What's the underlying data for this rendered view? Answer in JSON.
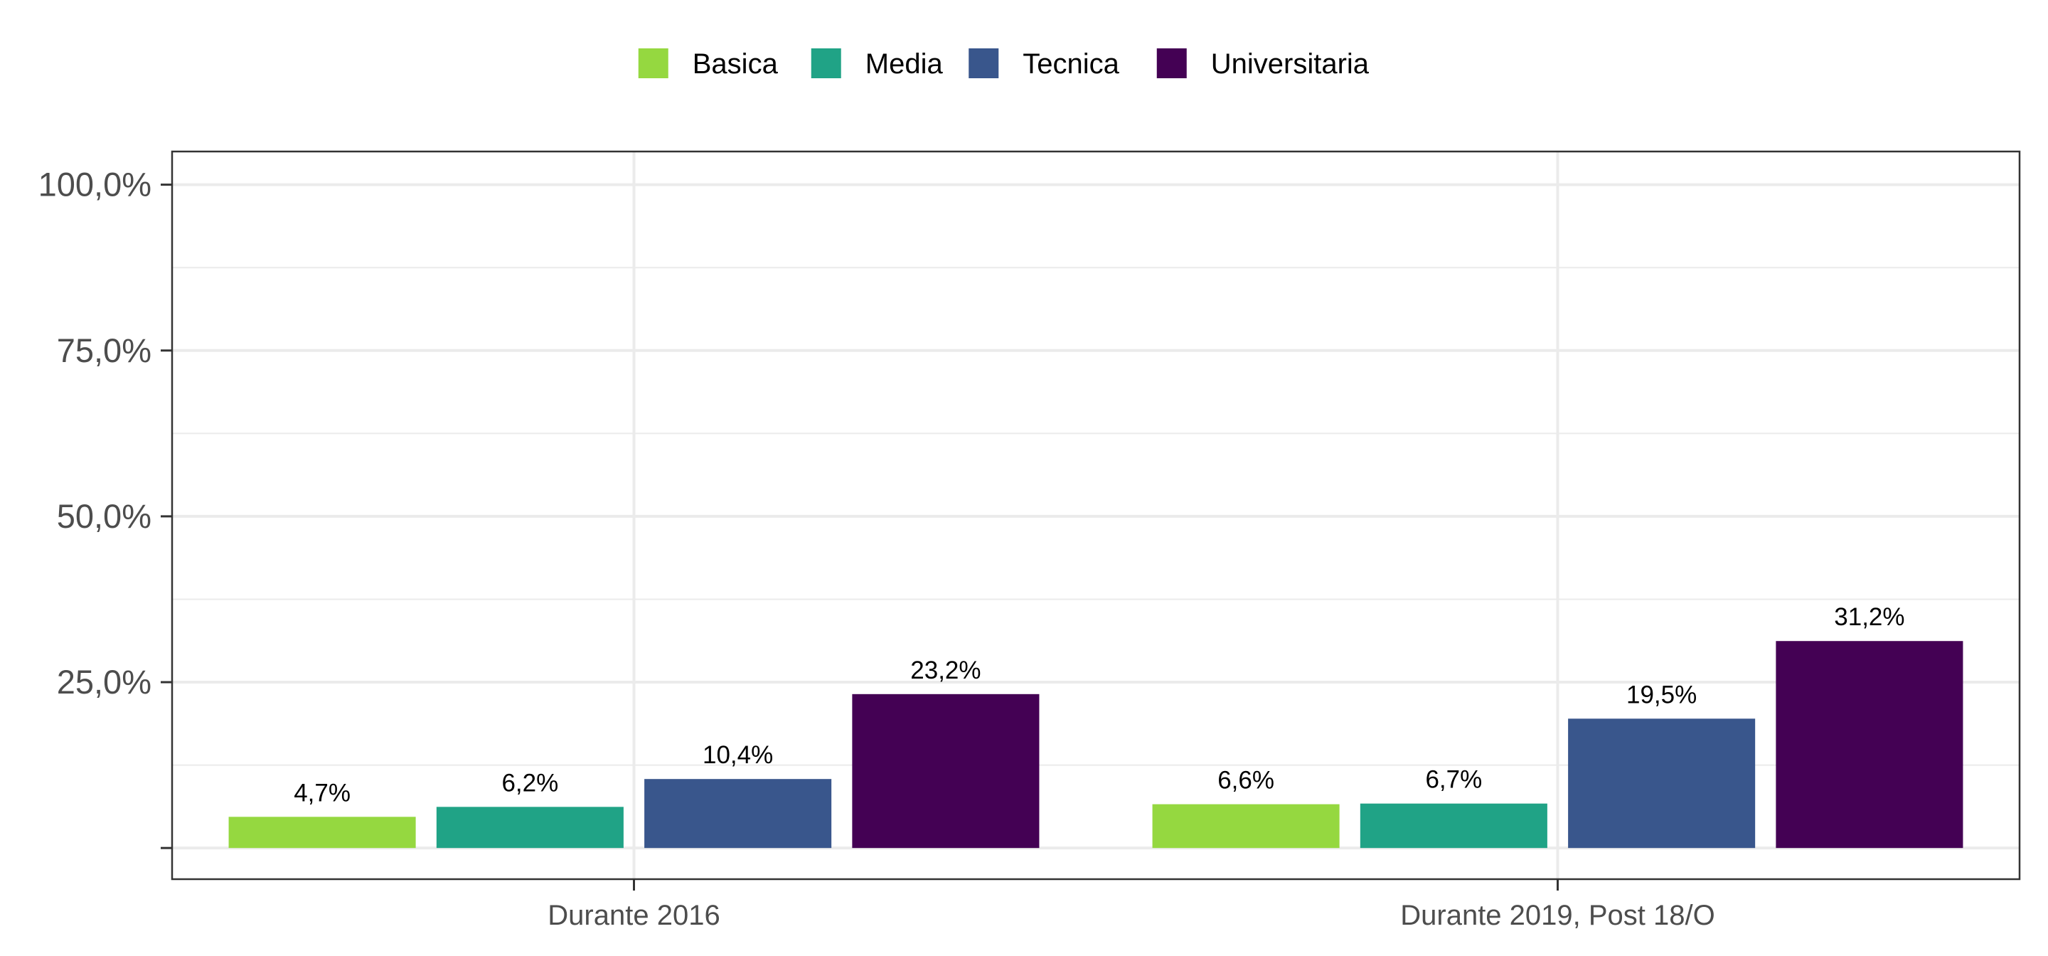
{
  "chart_data": {
    "type": "bar",
    "categories": [
      "Durante 2016",
      "Durante 2019, Post 18/O"
    ],
    "series": [
      {
        "name": "Basica",
        "color": "#95d840",
        "values": [
          4.7,
          6.6
        ],
        "labels": [
          "4,7%",
          "6,6%"
        ]
      },
      {
        "name": "Media",
        "color": "#20a386",
        "values": [
          6.2,
          6.7
        ],
        "labels": [
          "6,2%",
          "6,7%"
        ]
      },
      {
        "name": "Tecnica",
        "color": "#39568c",
        "values": [
          10.4,
          19.5
        ],
        "labels": [
          "10,4%",
          "19,5%"
        ]
      },
      {
        "name": "Universitaria",
        "color": "#440154",
        "values": [
          23.2,
          31.2
        ],
        "labels": [
          "23,2%",
          "31,2%"
        ]
      }
    ],
    "ylim": [
      -4.7,
      105
    ],
    "y_ticks": [
      0,
      25,
      50,
      75,
      100
    ],
    "y_tick_labels": [
      "",
      "25,0%",
      "50,0%",
      "75,0%",
      "100,0%"
    ],
    "grid": true,
    "legend_position": "top",
    "title": "",
    "xlabel": "",
    "ylabel": ""
  }
}
